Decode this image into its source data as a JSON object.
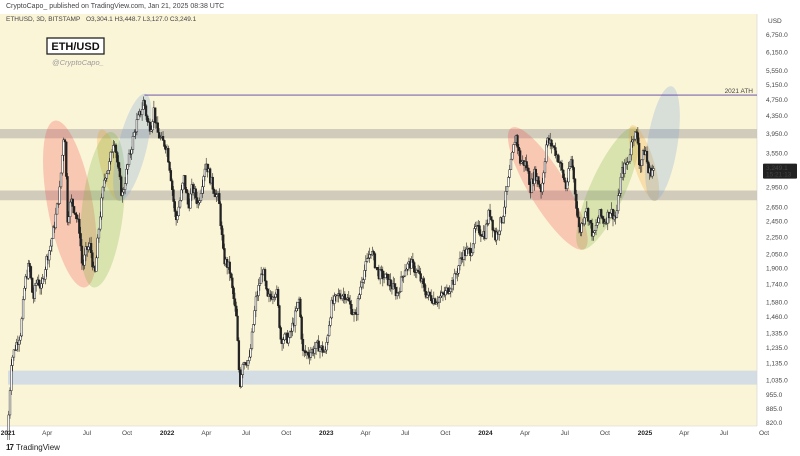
{
  "header": {
    "published_line": "CryptoCapo_ published on TradingView.com, Jan 21, 2025 08:38 UTC"
  },
  "footer": {
    "logo_mark": "17",
    "logo_text": "TradingView"
  },
  "chart_data": {
    "type": "candlestick",
    "symbol_line": "ETHUSD, 3D, BITSTAMP",
    "ohlc_label": "O3,304.1 H3,448.7 L3,127.0 C3,249.1",
    "title_box": "ETH/USD",
    "watermark": "@CryptoCapo_",
    "currency": "USD",
    "price_axis_ticks": [
      820,
      885,
      955,
      1035,
      1135,
      1235,
      1335,
      1460,
      1580,
      1740,
      1900,
      2050,
      2250,
      2450,
      2650,
      2950,
      3250,
      3550,
      3950,
      4350,
      4750,
      5150,
      5550,
      6150,
      6750
    ],
    "price_axis_labels": [
      "820.0",
      "885.0",
      "955.0",
      "1,035.0",
      "1,135.0",
      "1,235.0",
      "1,335.0",
      "1,460.0",
      "1,580.0",
      "1,740.0",
      "1,900.0",
      "2,050.0",
      "2,250.0",
      "2,450.0",
      "2,650.0",
      "2,950.0",
      "3,250.0",
      "3,550.0",
      "3,950.0",
      "4,350.0",
      "4,750.0",
      "5,150.0",
      "5,550.0",
      "6,150.0",
      "6,750.0"
    ],
    "scale": "log",
    "time_axis": [
      {
        "label": "2021",
        "date": "2021-01-01",
        "bold": true
      },
      {
        "label": "Apr",
        "date": "2021-04-01"
      },
      {
        "label": "Jul",
        "date": "2021-07-01"
      },
      {
        "label": "Oct",
        "date": "2021-10-01"
      },
      {
        "label": "2022",
        "date": "2022-01-01",
        "bold": true
      },
      {
        "label": "Apr",
        "date": "2022-04-01"
      },
      {
        "label": "Jul",
        "date": "2022-07-01"
      },
      {
        "label": "Oct",
        "date": "2022-10-01"
      },
      {
        "label": "2023",
        "date": "2023-01-01",
        "bold": true
      },
      {
        "label": "Apr",
        "date": "2023-04-01"
      },
      {
        "label": "Jul",
        "date": "2023-07-01"
      },
      {
        "label": "Oct",
        "date": "2023-10-01"
      },
      {
        "label": "2024",
        "date": "2024-01-01",
        "bold": true
      },
      {
        "label": "Apr",
        "date": "2024-04-01"
      },
      {
        "label": "Jul",
        "date": "2024-07-01"
      },
      {
        "label": "Oct",
        "date": "2024-10-01"
      },
      {
        "label": "2025",
        "date": "2025-01-01",
        "bold": true
      },
      {
        "label": "Apr",
        "date": "2025-04-01"
      },
      {
        "label": "Jul",
        "date": "2025-07-01"
      },
      {
        "label": "Oct",
        "date": "2025-10-01"
      }
    ],
    "price_path": [
      [
        "2021-01-01",
        740
      ],
      [
        "2021-01-10",
        1150
      ],
      [
        "2021-01-20",
        1250
      ],
      [
        "2021-02-01",
        1350
      ],
      [
        "2021-02-10",
        1750
      ],
      [
        "2021-02-20",
        1950
      ],
      [
        "2021-03-01",
        1600
      ],
      [
        "2021-03-10",
        1800
      ],
      [
        "2021-03-20",
        1700
      ],
      [
        "2021-04-01",
        2000
      ],
      [
        "2021-04-10",
        2150
      ],
      [
        "2021-04-20",
        2450
      ],
      [
        "2021-05-01",
        2900
      ],
      [
        "2021-05-06",
        3400
      ],
      [
        "2021-05-12",
        4150
      ],
      [
        "2021-05-19",
        2500
      ],
      [
        "2021-05-27",
        2750
      ],
      [
        "2021-06-05",
        2600
      ],
      [
        "2021-06-15",
        2350
      ],
      [
        "2021-06-22",
        1900
      ],
      [
        "2021-07-01",
        2100
      ],
      [
        "2021-07-10",
        2150
      ],
      [
        "2021-07-20",
        1800
      ],
      [
        "2021-08-01",
        2500
      ],
      [
        "2021-08-12",
        3150
      ],
      [
        "2021-08-22",
        3300
      ],
      [
        "2021-09-03",
        3900
      ],
      [
        "2021-09-12",
        3250
      ],
      [
        "2021-09-21",
        2800
      ],
      [
        "2021-10-01",
        3200
      ],
      [
        "2021-10-15",
        3800
      ],
      [
        "2021-10-25",
        4200
      ],
      [
        "2021-11-05",
        4500
      ],
      [
        "2021-11-10",
        4750
      ],
      [
        "2021-11-18",
        4200
      ],
      [
        "2021-11-26",
        4100
      ],
      [
        "2021-12-03",
        4500
      ],
      [
        "2021-12-10",
        4000
      ],
      [
        "2021-12-20",
        3800
      ],
      [
        "2022-01-01",
        3700
      ],
      [
        "2022-01-10",
        3200
      ],
      [
        "2022-01-22",
        2450
      ],
      [
        "2022-02-01",
        2750
      ],
      [
        "2022-02-10",
        3100
      ],
      [
        "2022-02-20",
        2650
      ],
      [
        "2022-03-01",
        2950
      ],
      [
        "2022-03-15",
        2700
      ],
      [
        "2022-04-01",
        3400
      ],
      [
        "2022-04-15",
        3000
      ],
      [
        "2022-05-01",
        2750
      ],
      [
        "2022-05-12",
        2000
      ],
      [
        "2022-05-25",
        1900
      ],
      [
        "2022-06-10",
        1450
      ],
      [
        "2022-06-18",
        1000
      ],
      [
        "2022-06-25",
        1150
      ],
      [
        "2022-07-10",
        1150
      ],
      [
        "2022-07-25",
        1600
      ],
      [
        "2022-08-10",
        1900
      ],
      [
        "2022-08-20",
        1600
      ],
      [
        "2022-09-10",
        1700
      ],
      [
        "2022-09-20",
        1300
      ],
      [
        "2022-10-10",
        1300
      ],
      [
        "2022-11-01",
        1600
      ],
      [
        "2022-11-10",
        1200
      ],
      [
        "2022-11-25",
        1200
      ],
      [
        "2022-12-15",
        1250
      ],
      [
        "2022-12-31",
        1200
      ],
      [
        "2023-01-14",
        1550
      ],
      [
        "2023-02-01",
        1650
      ],
      [
        "2023-02-15",
        1650
      ],
      [
        "2023-03-10",
        1450
      ],
      [
        "2023-03-25",
        1800
      ],
      [
        "2023-04-15",
        2100
      ],
      [
        "2023-05-01",
        1850
      ],
      [
        "2023-05-20",
        1800
      ],
      [
        "2023-06-15",
        1650
      ],
      [
        "2023-07-01",
        1900
      ],
      [
        "2023-07-15",
        1950
      ],
      [
        "2023-08-01",
        1850
      ],
      [
        "2023-08-20",
        1650
      ],
      [
        "2023-09-10",
        1600
      ],
      [
        "2023-10-01",
        1650
      ],
      [
        "2023-10-24",
        1800
      ],
      [
        "2023-11-10",
        2050
      ],
      [
        "2023-12-01",
        2100
      ],
      [
        "2023-12-10",
        2350
      ],
      [
        "2024-01-01",
        2300
      ],
      [
        "2024-01-12",
        2600
      ],
      [
        "2024-01-25",
        2250
      ],
      [
        "2024-02-10",
        2500
      ],
      [
        "2024-02-25",
        3100
      ],
      [
        "2024-03-12",
        3950
      ],
      [
        "2024-03-22",
        3400
      ],
      [
        "2024-04-05",
        3350
      ],
      [
        "2024-04-15",
        2950
      ],
      [
        "2024-04-25",
        3200
      ],
      [
        "2024-05-10",
        2900
      ],
      [
        "2024-05-22",
        3800
      ],
      [
        "2024-06-05",
        3700
      ],
      [
        "2024-06-20",
        3400
      ],
      [
        "2024-07-05",
        2950
      ],
      [
        "2024-07-18",
        3450
      ],
      [
        "2024-08-05",
        2300
      ],
      [
        "2024-08-20",
        2650
      ],
      [
        "2024-09-06",
        2250
      ],
      [
        "2024-09-20",
        2550
      ],
      [
        "2024-10-01",
        2450
      ],
      [
        "2024-10-15",
        2600
      ],
      [
        "2024-10-28",
        2500
      ],
      [
        "2024-11-10",
        3200
      ],
      [
        "2024-11-25",
        3400
      ],
      [
        "2024-12-06",
        3950
      ],
      [
        "2024-12-16",
        3900
      ],
      [
        "2024-12-21",
        3300
      ],
      [
        "2025-01-03",
        3650
      ],
      [
        "2025-01-10",
        3200
      ],
      [
        "2025-01-21",
        3249
      ]
    ],
    "last_price_label": "3,249.1",
    "countdown_label": "15:21:13",
    "horizontal_level": {
      "label": "2021 ATH",
      "price": 4870,
      "start_date": "2021-11-10"
    },
    "resistance_band": {
      "low": 3850,
      "high": 4050
    },
    "support_band": {
      "low": 2750,
      "high": 2900
    },
    "bottom_band": {
      "low": 1010,
      "high": 1090
    },
    "highlights": [
      {
        "name": "red-ellipse-2021",
        "color": "#ef5350",
        "from": [
          "2021-04-20",
          4150
        ],
        "to": [
          "2021-06-25",
          1750
        ]
      },
      {
        "name": "orange-ellipse-2021",
        "color": "#f0a030",
        "from": [
          "2021-08-05",
          3950
        ],
        "to": [
          "2021-09-12",
          2800
        ]
      },
      {
        "name": "green-ellipse-2021",
        "color": "#7cb342",
        "from": [
          "2021-07-18",
          1750
        ],
        "to": [
          "2021-08-25",
          3900
        ]
      },
      {
        "name": "blue-ellipse-2021",
        "color": "#7aa6d8",
        "from": [
          "2021-09-15",
          2800
        ],
        "to": [
          "2021-11-10",
          4800
        ]
      },
      {
        "name": "red-ellipse-2024",
        "color": "#ef5350",
        "from": [
          "2024-03-05",
          4000
        ],
        "to": [
          "2024-08-10",
          2150
        ]
      },
      {
        "name": "green-ellipse-2024",
        "color": "#7cb342",
        "from": [
          "2024-08-10",
          2150
        ],
        "to": [
          "2024-12-06",
          4000
        ]
      },
      {
        "name": "orange-ellipse-2024",
        "color": "#f0a030",
        "from": [
          "2024-12-05",
          4050
        ],
        "to": [
          "2025-01-23",
          2800
        ]
      },
      {
        "name": "blue-ellipse-2025",
        "color": "#7aa6d8",
        "from": [
          "2025-01-22",
          2800
        ],
        "to": [
          "2025-03-01",
          5000
        ]
      }
    ],
    "colors": {
      "background": "#fbf5d8",
      "candle": "#222222",
      "ath_line": "#5b3fa3",
      "resistance_band": "#c8c3b6",
      "support_band": "#c8c3b6",
      "bottom_band": "#cdd8e6",
      "price_label_bg": "#222222"
    }
  }
}
